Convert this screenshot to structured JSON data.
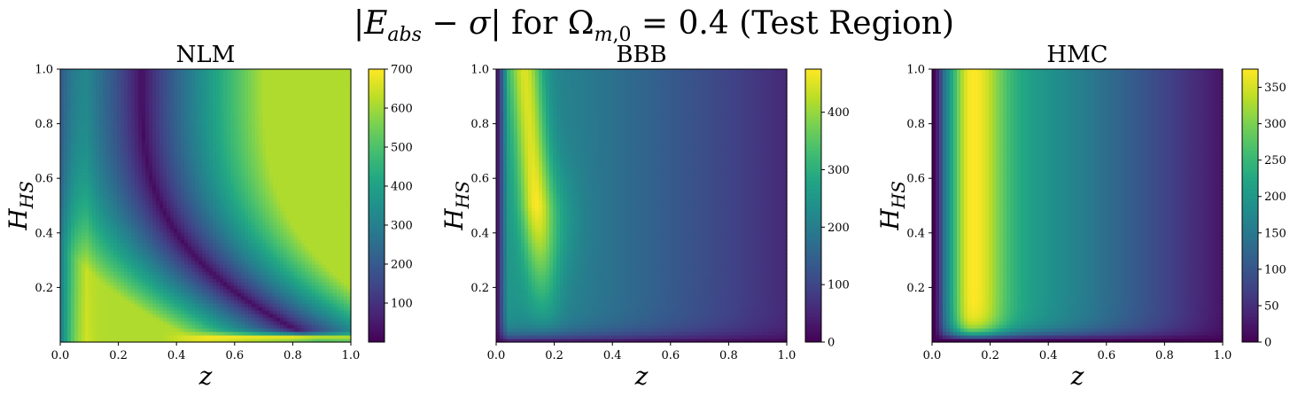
{
  "figure": {
    "title_text": "|E_abs − σ| for Ω_m,0 = 0.4 (Test Region)"
  },
  "chart_data": [
    {
      "type": "heatmap",
      "title": "NLM",
      "xlabel": "z",
      "ylabel": "H_HS",
      "xlim": [
        0.0,
        1.0
      ],
      "ylim": [
        0.0,
        1.0
      ],
      "x_ticks": [
        "0.0",
        "0.2",
        "0.4",
        "0.6",
        "0.8",
        "1.0"
      ],
      "y_ticks": [
        "0.2",
        "0.4",
        "0.6",
        "0.8",
        "1.0"
      ],
      "colorbar": {
        "min": 0,
        "max": 700,
        "ticks": [
          "100",
          "200",
          "300",
          "400",
          "500",
          "600",
          "700"
        ],
        "colormap": "viridis"
      }
    },
    {
      "type": "heatmap",
      "title": "BBB",
      "xlabel": "z",
      "ylabel": "H_HS",
      "xlim": [
        0.0,
        1.0
      ],
      "ylim": [
        0.0,
        1.0
      ],
      "x_ticks": [
        "0.0",
        "0.2",
        "0.4",
        "0.6",
        "0.8",
        "1.0"
      ],
      "y_ticks": [
        "0.2",
        "0.4",
        "0.6",
        "0.8",
        "1.0"
      ],
      "colorbar": {
        "min": 0,
        "max": 475,
        "ticks": [
          "0",
          "100",
          "200",
          "300",
          "400"
        ],
        "colormap": "viridis"
      }
    },
    {
      "type": "heatmap",
      "title": "HMC",
      "xlabel": "z",
      "ylabel": "H_HS",
      "xlim": [
        0.0,
        1.0
      ],
      "ylim": [
        0.0,
        1.0
      ],
      "x_ticks": [
        "0.0",
        "0.2",
        "0.4",
        "0.6",
        "0.8",
        "1.0"
      ],
      "y_ticks": [
        "0.2",
        "0.4",
        "0.6",
        "0.8",
        "1.0"
      ],
      "colorbar": {
        "min": 0,
        "max": 375,
        "ticks": [
          "0",
          "50",
          "100",
          "150",
          "200",
          "250",
          "300",
          "350"
        ],
        "colormap": "viridis"
      }
    }
  ]
}
